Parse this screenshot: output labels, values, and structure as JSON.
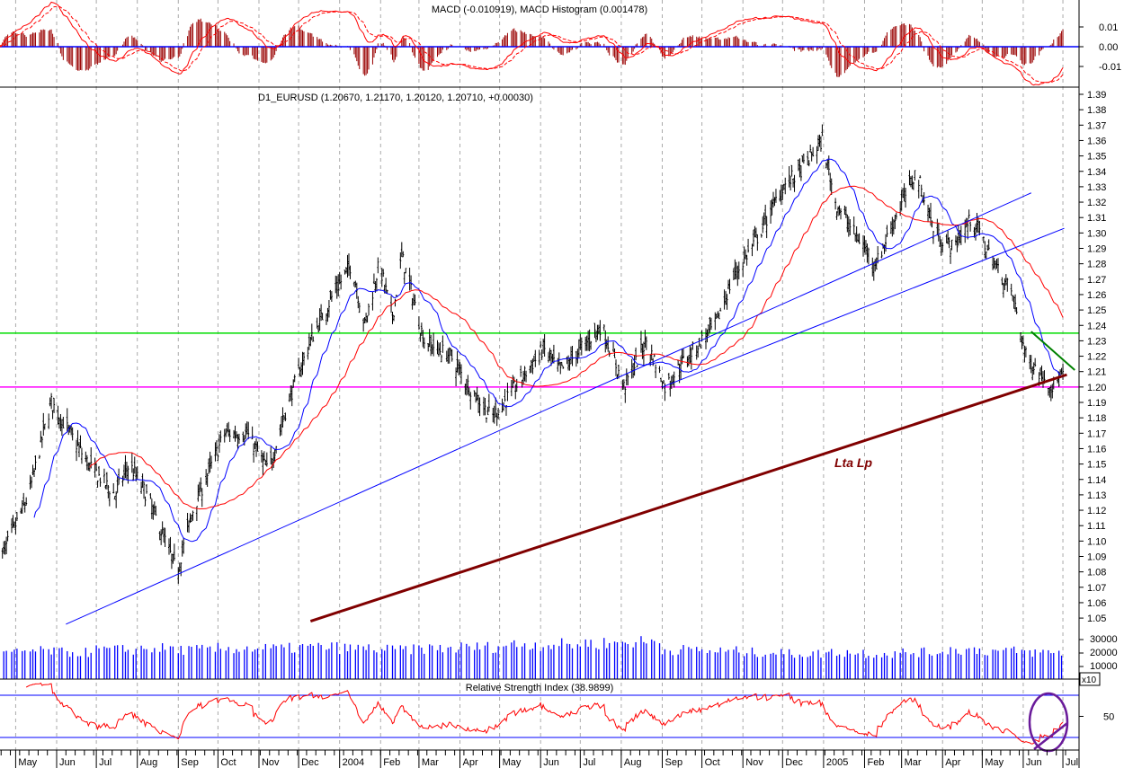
{
  "chart_data": {
    "type": "line",
    "instrument_title": "D1_EURUSD (1.20670, 1.21170, 1.20120, 1.20710, +0.00030)",
    "macd_title": "MACD (-0.010919), MACD Histogram (0.001478)",
    "rsi_title": "Relative Strength Index (38.9899)",
    "volume_multiplier_label": "x10",
    "annotation": "Lta Lp",
    "price_ylim": [
      1.04,
      1.395
    ],
    "price_ticks": [
      1.05,
      1.06,
      1.07,
      1.08,
      1.09,
      1.1,
      1.11,
      1.12,
      1.13,
      1.14,
      1.15,
      1.16,
      1.17,
      1.18,
      1.19,
      1.2,
      1.21,
      1.22,
      1.23,
      1.24,
      1.25,
      1.26,
      1.27,
      1.28,
      1.29,
      1.3,
      1.31,
      1.32,
      1.33,
      1.34,
      1.35,
      1.36,
      1.37,
      1.38,
      1.39
    ],
    "macd_ticks": [
      "0.01",
      "0.00",
      "-0.01"
    ],
    "volume_ticks": [
      "30000",
      "20000",
      "10000"
    ],
    "rsi_ticks": [
      "50"
    ],
    "rsi_levels": [
      80,
      20
    ],
    "x_tick_labels": [
      {
        "date": "2003-05-01",
        "label": "May"
      },
      {
        "date": "2003-06-01",
        "label": "Jun"
      },
      {
        "date": "2003-07-01",
        "label": "Jul"
      },
      {
        "date": "2003-08-01",
        "label": "Aug"
      },
      {
        "date": "2003-09-01",
        "label": "Sep"
      },
      {
        "date": "2003-10-01",
        "label": "Oct"
      },
      {
        "date": "2003-11-01",
        "label": "Nov"
      },
      {
        "date": "2003-12-01",
        "label": "Dec"
      },
      {
        "date": "2004-01-01",
        "label": "2004"
      },
      {
        "date": "2004-02-01",
        "label": "Feb"
      },
      {
        "date": "2004-03-01",
        "label": "Mar"
      },
      {
        "date": "2004-04-01",
        "label": "Apr"
      },
      {
        "date": "2004-05-01",
        "label": "May"
      },
      {
        "date": "2004-06-01",
        "label": "Jun"
      },
      {
        "date": "2004-07-01",
        "label": "Jul"
      },
      {
        "date": "2004-08-01",
        "label": "Aug"
      },
      {
        "date": "2004-09-01",
        "label": "Sep"
      },
      {
        "date": "2004-10-01",
        "label": "Oct"
      },
      {
        "date": "2004-11-01",
        "label": "Nov"
      },
      {
        "date": "2004-12-01",
        "label": "Dec"
      },
      {
        "date": "2005-01-01",
        "label": "2005"
      },
      {
        "date": "2005-02-01",
        "label": "Feb"
      },
      {
        "date": "2005-03-01",
        "label": "Mar"
      },
      {
        "date": "2005-04-01",
        "label": "Apr"
      },
      {
        "date": "2005-05-01",
        "label": "May"
      },
      {
        "date": "2005-06-01",
        "label": "Jun"
      },
      {
        "date": "2005-07-01",
        "label": "Jul"
      }
    ],
    "close_keypoints": [
      [
        "2003-04-18",
        1.085
      ],
      [
        "2003-05-11",
        1.13
      ],
      [
        "2003-05-22",
        1.17
      ],
      [
        "2003-05-28",
        1.19
      ],
      [
        "2003-06-11",
        1.17
      ],
      [
        "2003-06-25",
        1.15
      ],
      [
        "2003-07-15",
        1.13
      ],
      [
        "2003-07-26",
        1.15
      ],
      [
        "2003-08-08",
        1.13
      ],
      [
        "2003-08-22",
        1.1
      ],
      [
        "2003-08-31",
        1.08
      ],
      [
        "2003-09-12",
        1.12
      ],
      [
        "2003-10-06",
        1.17
      ],
      [
        "2003-10-23",
        1.17
      ],
      [
        "2003-11-08",
        1.145
      ],
      [
        "2003-11-23",
        1.19
      ],
      [
        "2003-12-10",
        1.23
      ],
      [
        "2003-12-27",
        1.26
      ],
      [
        "2004-01-10",
        1.28
      ],
      [
        "2004-01-20",
        1.24
      ],
      [
        "2004-01-31",
        1.28
      ],
      [
        "2004-02-10",
        1.245
      ],
      [
        "2004-02-17",
        1.285
      ],
      [
        "2004-03-05",
        1.23
      ],
      [
        "2004-03-25",
        1.22
      ],
      [
        "2004-04-08",
        1.2
      ],
      [
        "2004-04-25",
        1.18
      ],
      [
        "2004-05-13",
        1.2
      ],
      [
        "2004-06-03",
        1.225
      ],
      [
        "2004-06-16",
        1.21
      ],
      [
        "2004-07-17",
        1.24
      ],
      [
        "2004-08-03",
        1.2
      ],
      [
        "2004-08-20",
        1.23
      ],
      [
        "2004-09-03",
        1.2
      ],
      [
        "2004-09-20",
        1.22
      ],
      [
        "2004-10-11",
        1.24
      ],
      [
        "2004-10-24",
        1.27
      ],
      [
        "2004-11-14",
        1.3
      ],
      [
        "2004-12-01",
        1.33
      ],
      [
        "2004-12-14",
        1.34
      ],
      [
        "2004-12-31",
        1.36
      ],
      [
        "2005-01-10",
        1.32
      ],
      [
        "2005-01-24",
        1.3
      ],
      [
        "2005-02-10",
        1.28
      ],
      [
        "2005-02-24",
        1.31
      ],
      [
        "2005-03-12",
        1.34
      ],
      [
        "2005-03-26",
        1.3
      ],
      [
        "2005-04-09",
        1.29
      ],
      [
        "2005-04-23",
        1.31
      ],
      [
        "2005-05-10",
        1.28
      ],
      [
        "2005-05-24",
        1.26
      ],
      [
        "2005-06-03",
        1.22
      ],
      [
        "2005-06-13",
        1.21
      ],
      [
        "2005-06-23",
        1.2
      ],
      [
        "2005-07-01",
        1.2071
      ]
    ],
    "volume_monthly_level": [
      [
        "2003-04",
        20000
      ],
      [
        "2003-05",
        22000
      ],
      [
        "2003-06",
        21000
      ],
      [
        "2003-07",
        23000
      ],
      [
        "2003-08",
        24000
      ],
      [
        "2003-09",
        23000
      ],
      [
        "2003-10",
        24000
      ],
      [
        "2003-11",
        24000
      ],
      [
        "2003-12",
        25000
      ],
      [
        "2004-01",
        24000
      ],
      [
        "2004-02",
        23000
      ],
      [
        "2004-03",
        24000
      ],
      [
        "2004-04",
        25000
      ],
      [
        "2004-05",
        27000
      ],
      [
        "2004-06",
        27000
      ],
      [
        "2004-07",
        28000
      ],
      [
        "2004-08",
        29000
      ],
      [
        "2004-09",
        23000
      ],
      [
        "2004-10",
        22000
      ],
      [
        "2004-11",
        21000
      ],
      [
        "2004-12",
        20000
      ],
      [
        "2005-01",
        21000
      ],
      [
        "2005-02",
        20000
      ],
      [
        "2005-03",
        21000
      ],
      [
        "2005-04",
        23000
      ],
      [
        "2005-05",
        22000
      ],
      [
        "2005-06",
        21000
      ]
    ],
    "moving_averages": [
      {
        "type": "SMA",
        "period": 20,
        "color": "#0000ff"
      },
      {
        "type": "SMA",
        "period": 50,
        "color": "#ff0000"
      }
    ],
    "horizontal_lines": [
      {
        "price": 1.235,
        "color": "#00dd00"
      },
      {
        "price": 1.2,
        "color": "#ff00ff"
      }
    ],
    "trendlines": [
      {
        "from": [
          "2003-06-08",
          1.046
        ],
        "to": [
          "2005-06-07",
          1.326
        ],
        "color": "#0000ff"
      },
      {
        "from": [
          "2004-09-01",
          1.2
        ],
        "to": [
          "2005-07-02",
          1.303
        ],
        "color": "#0000ff"
      },
      {
        "from": [
          "2003-12-10",
          1.048
        ],
        "to": [
          "2005-07-04",
          1.208
        ],
        "color": "#800000",
        "label": "Lta Lp"
      },
      {
        "from": [
          "2005-06-07",
          1.236
        ],
        "to": [
          "2005-07-10",
          1.211
        ],
        "color": "#008000"
      }
    ],
    "colors": {
      "bars": "#000000",
      "macd": "#ff0000",
      "histogram": "#990000",
      "zero_line": "#0000ff",
      "volume": "#0000ff",
      "rsi": "#ff0000",
      "circle": "#6a1b9a"
    }
  }
}
